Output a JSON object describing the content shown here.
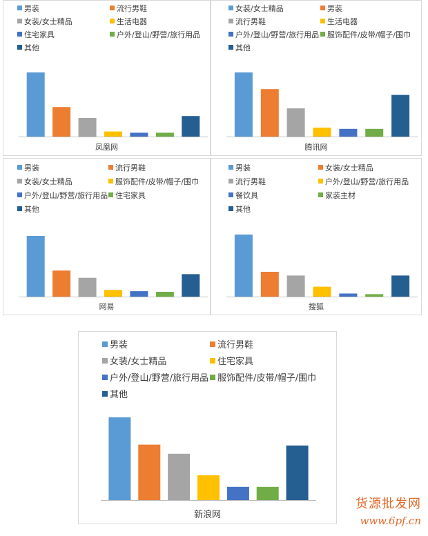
{
  "chart_data": [
    {
      "type": "bar",
      "title": "凤凰网",
      "series": [
        {
          "name": "男装",
          "values": [
            100
          ]
        },
        {
          "name": "流行男鞋",
          "values": [
            46
          ]
        },
        {
          "name": "女装/女士精品",
          "values": [
            29
          ]
        },
        {
          "name": "生活电器",
          "values": [
            8
          ]
        },
        {
          "name": "住宅家具",
          "values": [
            6
          ]
        },
        {
          "name": "户外/登山/野营/旅行用品",
          "values": [
            6
          ]
        },
        {
          "name": "其他",
          "values": [
            32
          ]
        }
      ]
    },
    {
      "type": "bar",
      "title": "腾讯网",
      "series": [
        {
          "name": "女装/女士精品",
          "values": [
            100
          ]
        },
        {
          "name": "男装",
          "values": [
            74
          ]
        },
        {
          "name": "流行男鞋",
          "values": [
            44
          ]
        },
        {
          "name": "生活电器",
          "values": [
            14
          ]
        },
        {
          "name": "户外/登山/野营/旅行用品",
          "values": [
            12
          ]
        },
        {
          "name": "服饰配件/皮带/帽子/围巾",
          "values": [
            12
          ]
        },
        {
          "name": "其他",
          "values": [
            65
          ]
        }
      ]
    },
    {
      "type": "bar",
      "title": "网易",
      "series": [
        {
          "name": "男装",
          "values": [
            100
          ]
        },
        {
          "name": "流行男鞋",
          "values": [
            43
          ]
        },
        {
          "name": "女装/女士精品",
          "values": [
            31
          ]
        },
        {
          "name": "服饰配件/皮带/帽子/围巾",
          "values": [
            11
          ]
        },
        {
          "name": "户外/登山/野营/旅行用品",
          "values": [
            9
          ]
        },
        {
          "name": "住宅家具",
          "values": [
            8
          ]
        },
        {
          "name": "其他",
          "values": [
            37
          ]
        }
      ]
    },
    {
      "type": "bar",
      "title": "搜狐",
      "series": [
        {
          "name": "男装",
          "values": [
            100
          ]
        },
        {
          "name": "女装/女士精品",
          "values": [
            40
          ]
        },
        {
          "name": "流行男鞋",
          "values": [
            34
          ]
        },
        {
          "name": "户外/登山/野营/旅行用品",
          "values": [
            16
          ]
        },
        {
          "name": "餐饮具",
          "values": [
            5
          ]
        },
        {
          "name": "家装主材",
          "values": [
            4
          ]
        },
        {
          "name": "其他",
          "values": [
            34
          ]
        }
      ]
    },
    {
      "type": "bar",
      "title": "新浪网",
      "series": [
        {
          "name": "男装",
          "values": [
            100
          ]
        },
        {
          "name": "流行男鞋",
          "values": [
            67
          ]
        },
        {
          "name": "女装/女士精品",
          "values": [
            56
          ]
        },
        {
          "name": "住宅家具",
          "values": [
            30
          ]
        },
        {
          "name": "户外/登山/野营/旅行用品",
          "values": [
            16
          ]
        },
        {
          "name": "服饰配件/皮带/帽子/围巾",
          "values": [
            16
          ]
        },
        {
          "name": "其他",
          "values": [
            66
          ]
        }
      ]
    }
  ],
  "colors": [
    "#5b9bd5",
    "#ed7d31",
    "#a5a5a5",
    "#ffc000",
    "#4472c4",
    "#70ad47",
    "#255e91"
  ],
  "watermark": {
    "text_cn": "货源批发网",
    "url": "www.6pf.cn"
  }
}
